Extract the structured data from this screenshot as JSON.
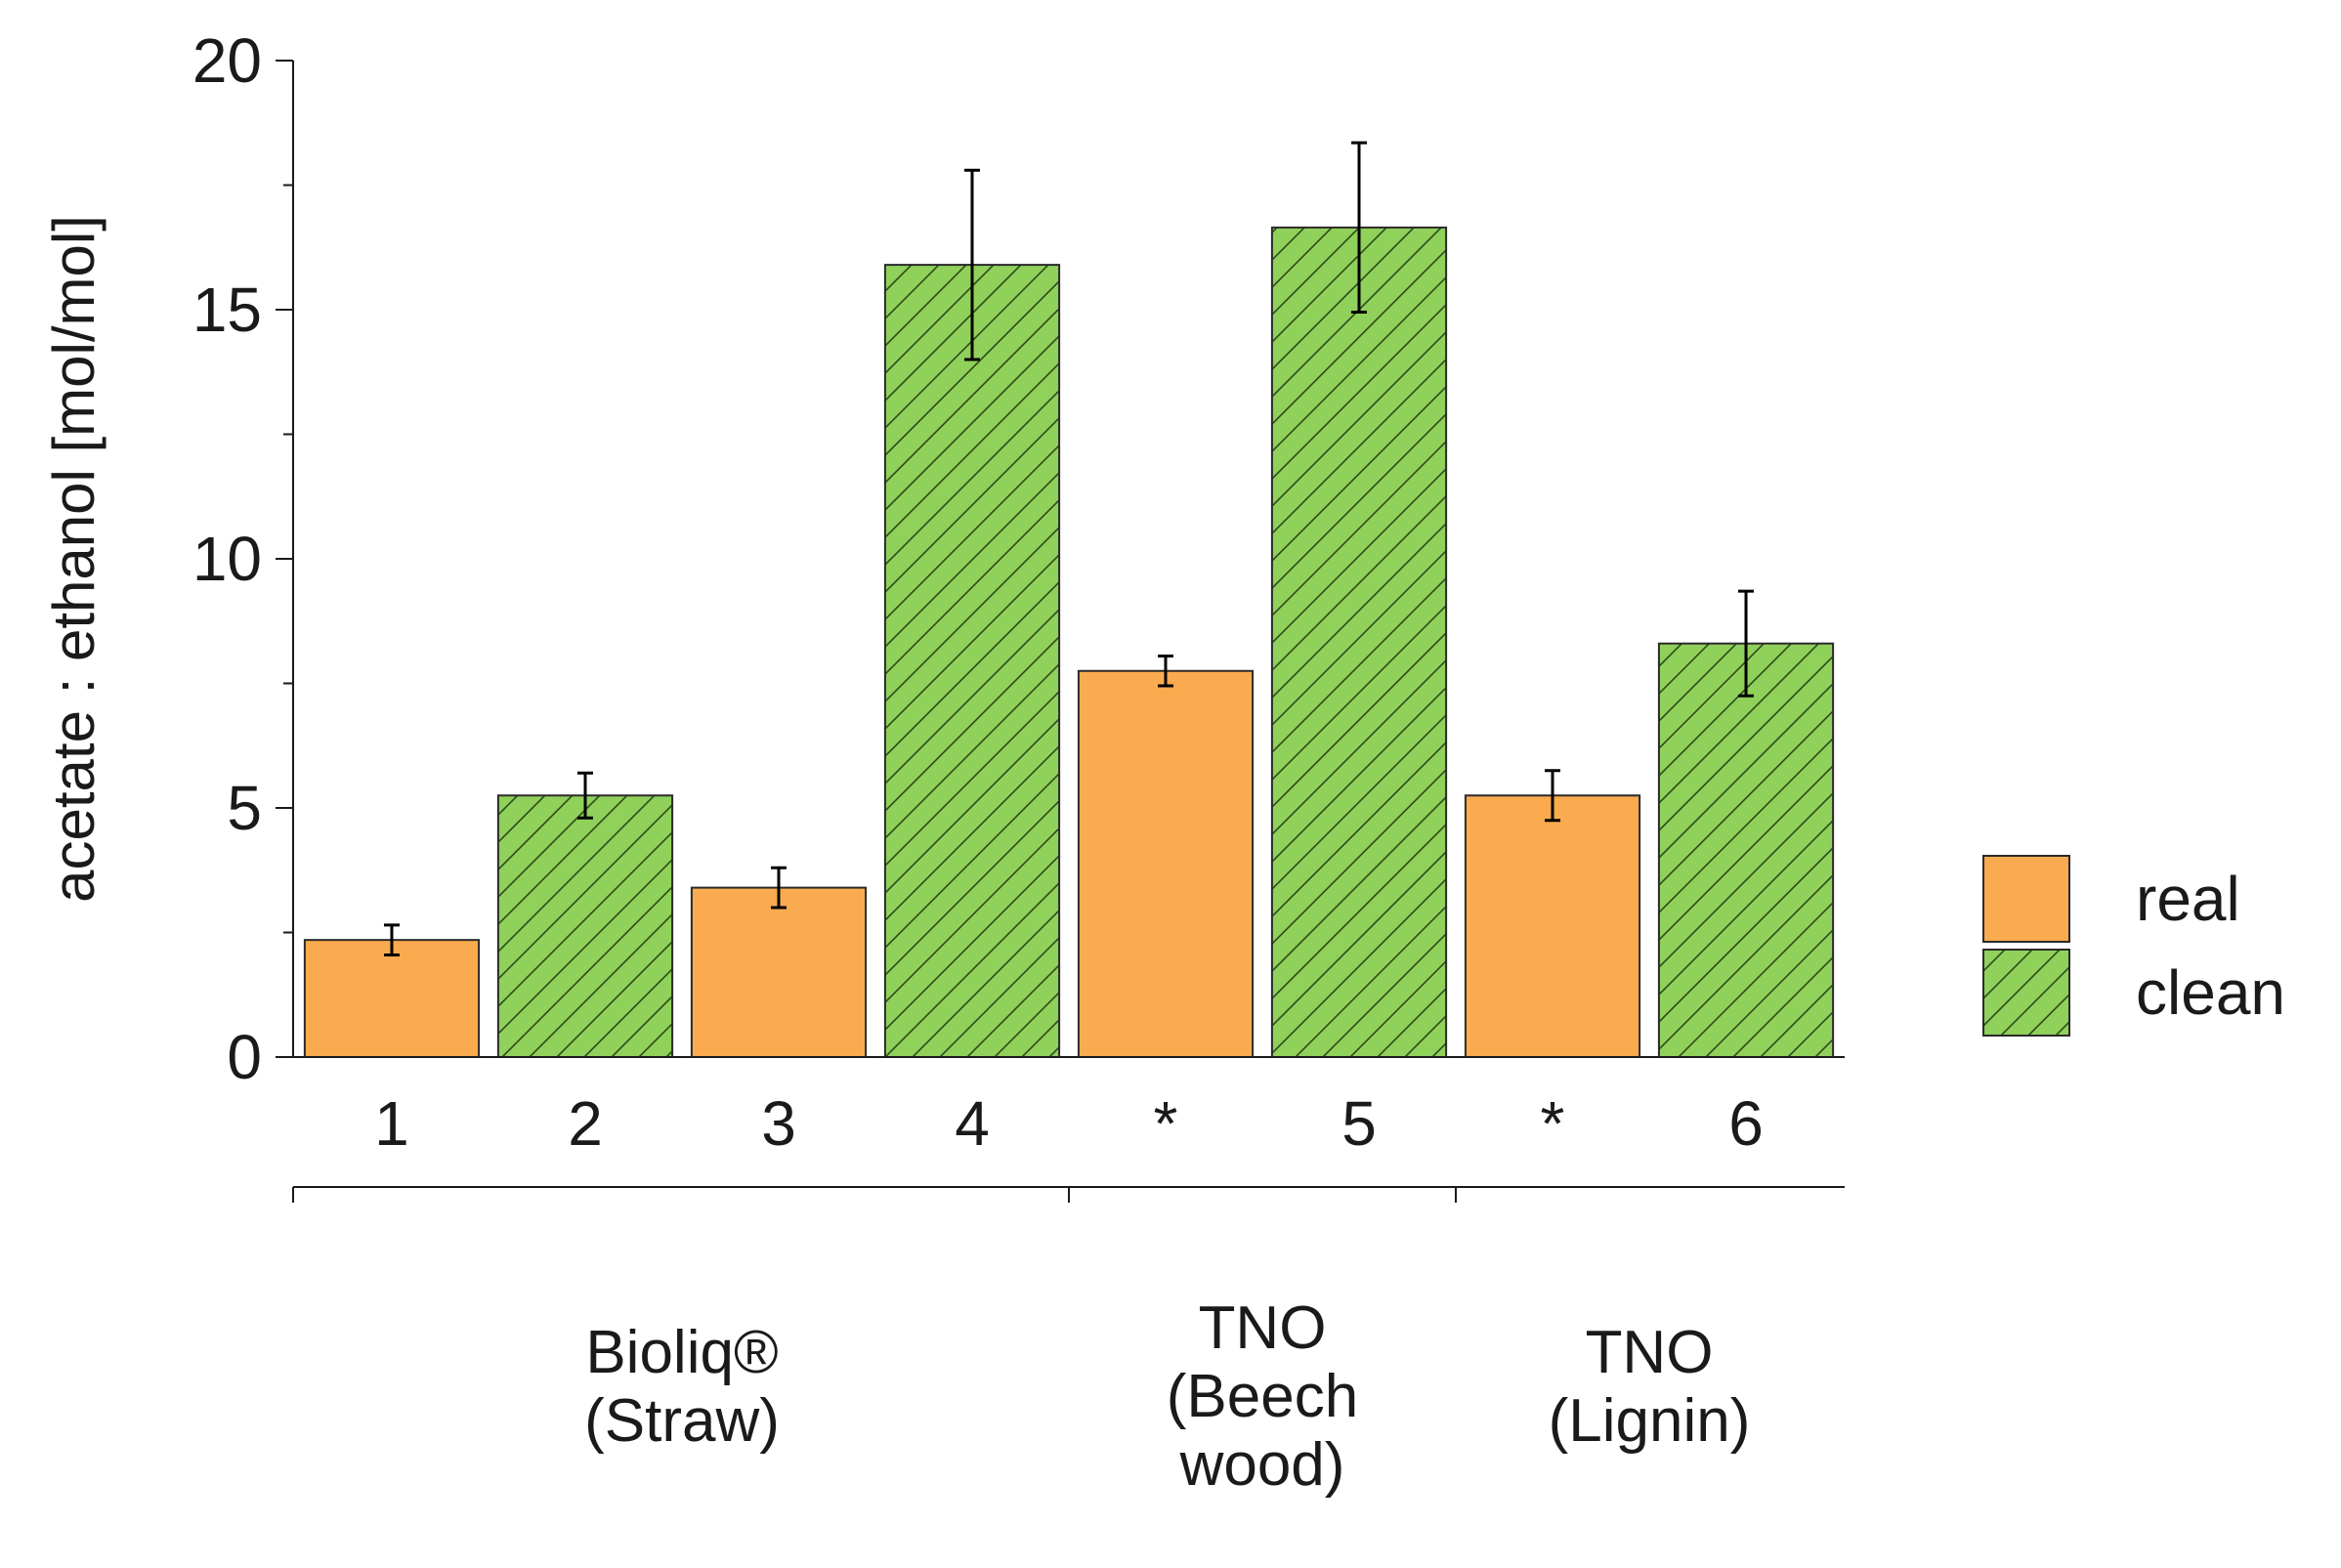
{
  "chart_data": {
    "type": "bar",
    "title": "",
    "xlabel": "",
    "ylabel": "acetate : ethanol [mol/mol]",
    "ylim": [
      0,
      20
    ],
    "yticks": [
      0,
      5,
      10,
      15,
      20
    ],
    "grid": false,
    "legend_position": "right",
    "colors": {
      "real": "#fbab4f",
      "clean": "#8fd15b",
      "hatch": "#2e4a18",
      "axis": "#1a1a1a"
    },
    "series": [
      {
        "name": "real",
        "pattern": "solid"
      },
      {
        "name": "clean",
        "pattern": "hatched"
      }
    ],
    "bars": [
      {
        "label": "1",
        "series": "real",
        "value": 2.35,
        "error": 0.3
      },
      {
        "label": "2",
        "series": "clean",
        "value": 5.25,
        "error": 0.45
      },
      {
        "label": "3",
        "series": "real",
        "value": 3.4,
        "error": 0.4
      },
      {
        "label": "4",
        "series": "clean",
        "value": 15.9,
        "error": 1.9
      },
      {
        "label": "*",
        "series": "real",
        "value": 7.75,
        "error": 0.3
      },
      {
        "label": "5",
        "series": "clean",
        "value": 16.65,
        "error": 1.7
      },
      {
        "label": "*",
        "series": "real",
        "value": 5.25,
        "error": 0.5
      },
      {
        "label": "6",
        "series": "clean",
        "value": 8.3,
        "error": 1.05
      }
    ],
    "groups": [
      {
        "lines": [
          "Bioliq®",
          "(Straw)"
        ],
        "bar_range": [
          0,
          3
        ]
      },
      {
        "lines": [
          "TNO",
          "(Beech",
          "wood)"
        ],
        "bar_range": [
          4,
          5
        ]
      },
      {
        "lines": [
          "TNO",
          "(Lignin)"
        ],
        "bar_range": [
          6,
          7
        ]
      }
    ]
  }
}
